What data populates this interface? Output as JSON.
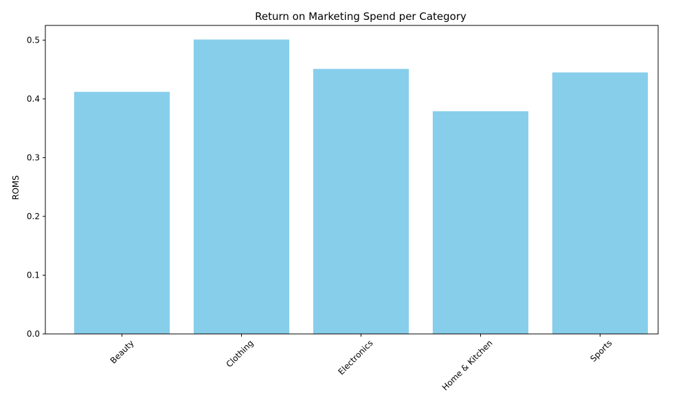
{
  "chart_data": {
    "type": "bar",
    "title": "Return on Marketing Spend per Category",
    "xlabel": "",
    "ylabel": "ROMS",
    "categories": [
      "Beauty",
      "Clothing",
      "Electronics",
      "Home & Kitchen",
      "Sports"
    ],
    "values": [
      0.412,
      0.501,
      0.451,
      0.379,
      0.445
    ],
    "ylim": [
      0,
      0.525
    ],
    "yticks": [
      0.0,
      0.1,
      0.2,
      0.3,
      0.4,
      0.5
    ],
    "ytick_labels": [
      "0.0",
      "0.1",
      "0.2",
      "0.3",
      "0.4",
      "0.5"
    ],
    "bar_color": "#87CEEB",
    "grid": false,
    "legend": "none",
    "xtick_rotation": 45
  }
}
